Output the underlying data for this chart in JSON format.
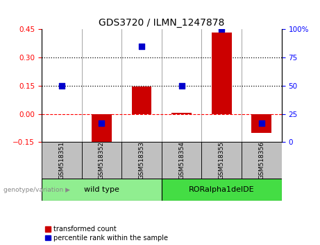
{
  "title": "GDS3720 / ILMN_1247878",
  "samples": [
    "GSM518351",
    "GSM518352",
    "GSM518353",
    "GSM518354",
    "GSM518355",
    "GSM518356"
  ],
  "red_bars": [
    0.0,
    -0.17,
    0.145,
    0.005,
    0.435,
    -0.1
  ],
  "blue_pct": [
    50,
    17,
    85,
    50,
    100,
    17
  ],
  "left_ylim": [
    -0.15,
    0.45
  ],
  "left_yticks": [
    -0.15,
    0.0,
    0.15,
    0.3,
    0.45
  ],
  "right_ylim": [
    0,
    100
  ],
  "right_yticks": [
    0,
    25,
    50,
    75,
    100
  ],
  "right_yticklabels": [
    "0",
    "25",
    "50",
    "75",
    "100%"
  ],
  "hlines": [
    0.15,
    0.3
  ],
  "hline_zero": 0.0,
  "group1_label": "wild type",
  "group2_label": "RORalpha1delDE",
  "group1_indices": [
    0,
    1,
    2
  ],
  "group2_indices": [
    3,
    4,
    5
  ],
  "group1_color": "#90EE90",
  "group2_color": "#44DD44",
  "bar_color": "#CC0000",
  "dot_color": "#0000CC",
  "bar_width": 0.5,
  "dot_size": 35,
  "xlabel_area_color": "#C0C0C0",
  "genotype_label": "genotype/variation",
  "legend_red": "transformed count",
  "legend_blue": "percentile rank within the sample"
}
